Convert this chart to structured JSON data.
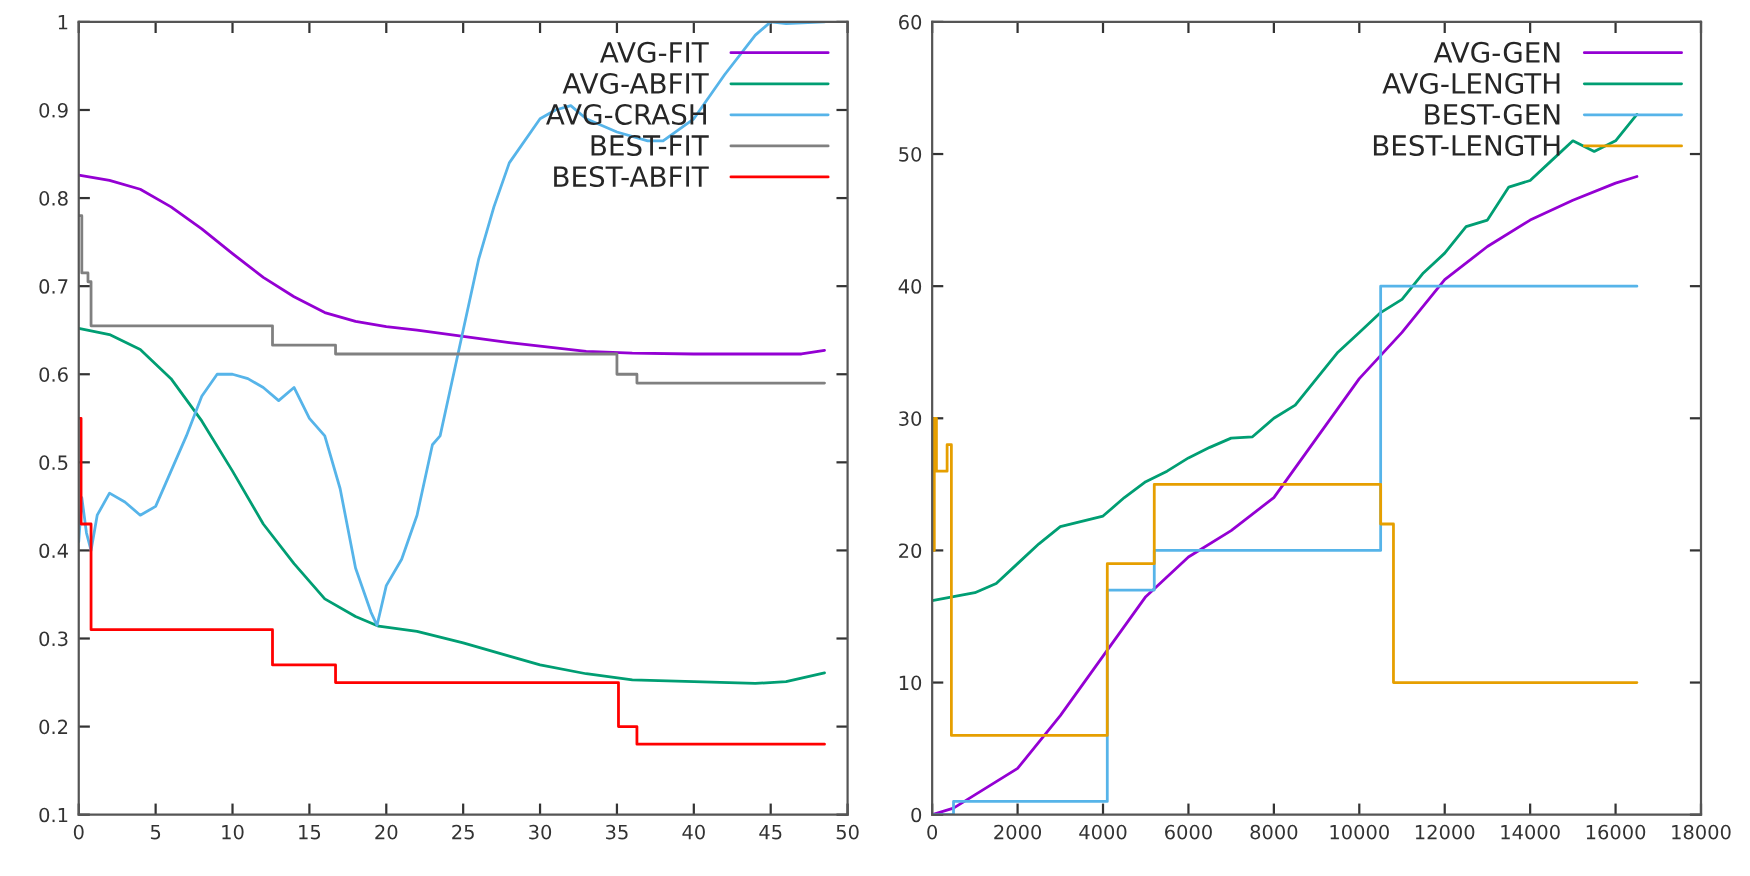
{
  "chart_data": [
    {
      "type": "line",
      "xlim": [
        0,
        50
      ],
      "ylim": [
        0.1,
        1
      ],
      "xticks": [
        0,
        5,
        10,
        15,
        20,
        25,
        30,
        35,
        40,
        45,
        50
      ],
      "yticks": [
        0.1,
        0.2,
        0.3,
        0.4,
        0.5,
        0.6,
        0.7,
        0.8,
        0.9,
        1
      ],
      "grid": false,
      "legend": "top right",
      "series": [
        {
          "name": "AVG-FIT",
          "color": "#9400d3",
          "x": [
            0,
            2,
            4,
            6,
            8,
            10,
            12,
            14,
            16,
            18,
            20,
            22,
            25,
            28,
            30,
            33,
            36,
            40,
            45,
            47,
            48.5
          ],
          "values": [
            0.826,
            0.82,
            0.81,
            0.79,
            0.765,
            0.737,
            0.71,
            0.688,
            0.67,
            0.66,
            0.654,
            0.65,
            0.643,
            0.636,
            0.632,
            0.626,
            0.624,
            0.623,
            0.623,
            0.623,
            0.627
          ]
        },
        {
          "name": "AVG-ABFIT",
          "color": "#009e73",
          "x": [
            0,
            2,
            4,
            6,
            8,
            10,
            12,
            14,
            16,
            18,
            19.5,
            22,
            25,
            28,
            30,
            33,
            36,
            40,
            44,
            46,
            48.5
          ],
          "values": [
            0.652,
            0.645,
            0.628,
            0.595,
            0.547,
            0.49,
            0.43,
            0.385,
            0.345,
            0.325,
            0.314,
            0.308,
            0.295,
            0.28,
            0.27,
            0.26,
            0.253,
            0.251,
            0.249,
            0.251,
            0.261
          ]
        },
        {
          "name": "AVG-CRASH",
          "color": "#56b4e9",
          "x": [
            0,
            0.2,
            0.5,
            0.8,
            1.2,
            2,
            3,
            4,
            5,
            6,
            7,
            8,
            9,
            10,
            11,
            12,
            13,
            14,
            15,
            16,
            17,
            18,
            19,
            19.4,
            20,
            21,
            22,
            23,
            23.5,
            24,
            25,
            26,
            27,
            28,
            30,
            31,
            32,
            33,
            35,
            37,
            38,
            40,
            42,
            44,
            45,
            46,
            48.5
          ],
          "values": [
            0.41,
            0.46,
            0.42,
            0.4,
            0.44,
            0.465,
            0.455,
            0.44,
            0.45,
            0.49,
            0.53,
            0.575,
            0.6,
            0.6,
            0.595,
            0.585,
            0.57,
            0.585,
            0.55,
            0.53,
            0.47,
            0.38,
            0.33,
            0.315,
            0.36,
            0.39,
            0.44,
            0.52,
            0.53,
            0.57,
            0.65,
            0.73,
            0.79,
            0.84,
            0.89,
            0.9,
            0.905,
            0.89,
            0.875,
            0.865,
            0.865,
            0.89,
            0.94,
            0.985,
            1,
            0.998,
            1
          ]
        },
        {
          "name": "BEST-FIT",
          "color": "#808080",
          "type": "step",
          "x": [
            0,
            0.2,
            0.6,
            0.8,
            12.6,
            16.7,
            35,
            36.3,
            48.5
          ],
          "values": [
            0.78,
            0.715,
            0.705,
            0.655,
            0.633,
            0.623,
            0.6,
            0.59,
            0.59
          ]
        },
        {
          "name": "BEST-ABFIT",
          "color": "#ff0000",
          "type": "step",
          "x": [
            0,
            0.15,
            0.8,
            12.6,
            16.7,
            35.1,
            36.3,
            48.5
          ],
          "values": [
            0.55,
            0.43,
            0.31,
            0.27,
            0.25,
            0.2,
            0.18,
            0.18
          ]
        }
      ]
    },
    {
      "type": "line",
      "xlim": [
        0,
        18000
      ],
      "ylim": [
        0,
        60
      ],
      "xticks": [
        0,
        2000,
        4000,
        6000,
        8000,
        10000,
        12000,
        14000,
        16000,
        18000
      ],
      "yticks": [
        0,
        10,
        20,
        30,
        40,
        50,
        60
      ],
      "grid": false,
      "legend": "top right",
      "series": [
        {
          "name": "AVG-GEN",
          "color": "#9400d3",
          "x": [
            0,
            500,
            1000,
            2000,
            3000,
            4000,
            5000,
            6000,
            7000,
            8000,
            9000,
            10000,
            11000,
            12000,
            13000,
            14000,
            15000,
            16000,
            16500
          ],
          "values": [
            0,
            0.5,
            1.5,
            3.5,
            7.5,
            12,
            16.5,
            19.5,
            21.5,
            24,
            28.5,
            33,
            36.5,
            40.5,
            43,
            45,
            46.5,
            47.8,
            48.3
          ]
        },
        {
          "name": "AVG-LENGTH",
          "color": "#009e73",
          "x": [
            0,
            500,
            1000,
            1500,
            2000,
            2500,
            3000,
            3500,
            4000,
            4500,
            5000,
            5500,
            6000,
            6500,
            7000,
            7500,
            8000,
            8500,
            9000,
            9500,
            10000,
            10500,
            11000,
            11500,
            12000,
            12500,
            13000,
            13500,
            14000,
            14500,
            15000,
            15500,
            16000,
            16500
          ],
          "values": [
            16.2,
            16.5,
            16.8,
            17.5,
            19,
            20.5,
            21.8,
            22.2,
            22.6,
            24,
            25.2,
            26,
            27,
            27.8,
            28.5,
            28.6,
            30,
            31,
            33,
            35,
            36.5,
            38,
            39,
            41,
            42.5,
            44.5,
            45,
            47.5,
            48,
            49.5,
            51,
            50.2,
            51,
            53
          ]
        },
        {
          "name": "BEST-GEN",
          "color": "#56b4e9",
          "type": "step",
          "x": [
            0,
            500,
            4100,
            5200,
            10500,
            16500
          ],
          "values": [
            0,
            1,
            17,
            20,
            40,
            40
          ]
        },
        {
          "name": "BEST-LENGTH",
          "color": "#e69f00",
          "type": "step",
          "x": [
            0,
            50,
            100,
            350,
            450,
            4100,
            5200,
            10500,
            10800,
            16500
          ],
          "values": [
            20,
            30,
            26,
            28,
            6,
            19,
            25,
            22,
            10,
            10
          ]
        }
      ]
    }
  ]
}
